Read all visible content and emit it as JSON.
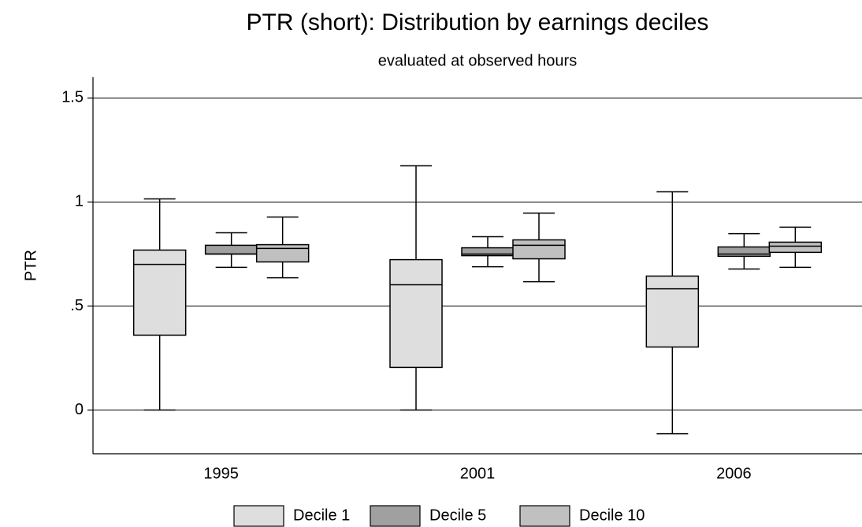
{
  "chart_data": {
    "type": "box",
    "title": "PTR (short): Distribution by earnings deciles",
    "subtitle": "evaluated at observed hours",
    "y_label": "PTR",
    "categories": [
      "1995",
      "2001",
      "2006"
    ],
    "series": [
      {
        "name": "Decile 1",
        "color": "#dedede",
        "whisker_low": [
          0,
          0,
          -0.114
        ],
        "q1": [
          0.36,
          0.205,
          0.303
        ],
        "median": [
          0.7,
          0.602,
          0.583
        ],
        "q3": [
          0.769,
          0.723,
          0.644
        ],
        "whisker_high": [
          1.015,
          1.174,
          1.049
        ]
      },
      {
        "name": "Decile 5",
        "color": "#a0a0a0",
        "whisker_low": [
          0.686,
          0.689,
          0.678
        ],
        "q1": [
          0.75,
          0.742,
          0.739
        ],
        "median": [
          0.75,
          0.75,
          0.75
        ],
        "q3": [
          0.792,
          0.78,
          0.784
        ],
        "whisker_high": [
          0.852,
          0.833,
          0.848
        ]
      },
      {
        "name": "Decile 10",
        "color": "#c0c0c0",
        "whisker_low": [
          0.636,
          0.617,
          0.686
        ],
        "q1": [
          0.712,
          0.727,
          0.758
        ],
        "median": [
          0.777,
          0.792,
          0.788
        ],
        "q3": [
          0.795,
          0.818,
          0.807
        ],
        "whisker_high": [
          0.928,
          0.947,
          0.879
        ]
      }
    ],
    "ylim": [
      -0.21,
      1.6
    ],
    "yticks": [
      0,
      {
        "value": 0.5,
        "label": ".5"
      },
      1,
      1.5
    ],
    "grid": true,
    "legend": "bottom"
  }
}
